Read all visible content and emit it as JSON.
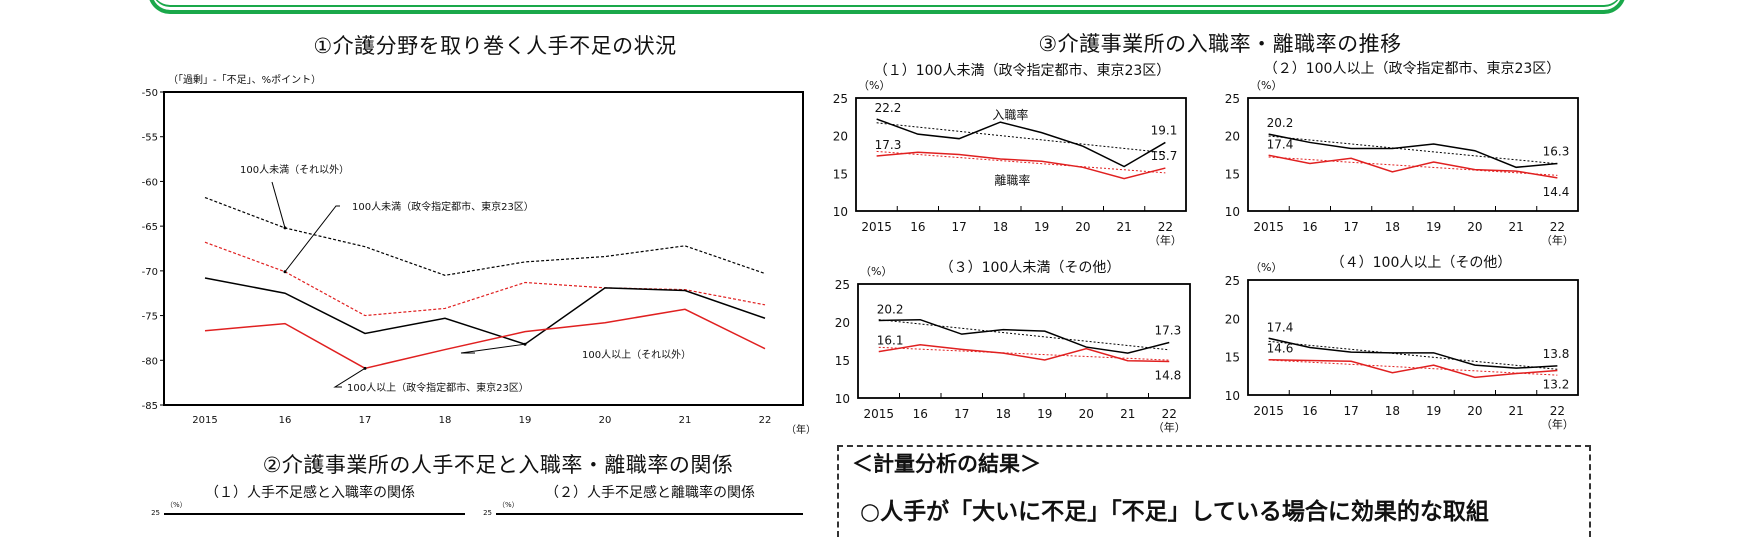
{
  "frame_color": "#1aa84a",
  "section1": {
    "title": "①介護分野を取り巻く人手不足の状況"
  },
  "section2": {
    "title": "②介護事業所の人手不足と入職率・離職率の関係",
    "subcharts": [
      {
        "title": "（１）人手不足感と入職率の関係",
        "unit": "（%）",
        "ytop": "25"
      },
      {
        "title": "（２）人手不足感と離職率の関係",
        "unit": "（%）",
        "ytop": "25"
      }
    ]
  },
  "section3": {
    "title": "③介護事業所の入職率・離職率の推移"
  },
  "results": {
    "heading": "＜計量分析の結果＞",
    "line1": "○人手が「大いに不足」「不足」している場合に効果的な取組"
  },
  "chart_data": [
    {
      "type": "line",
      "title": "",
      "ylabel": "（「過剰」-「不足」、%ポイント）",
      "xlabel": "（年）",
      "categories": [
        "2015",
        "16",
        "17",
        "18",
        "19",
        "20",
        "21",
        "22"
      ],
      "ylim": [
        -85,
        -50
      ],
      "yticks": [
        "-50",
        "-55",
        "-60",
        "-65",
        "-70",
        "-75",
        "-80",
        "-85"
      ],
      "grid": false,
      "series": [
        {
          "name": "100人未満（それ以外）",
          "color": "#000000",
          "dash": true,
          "values": [
            -61.8,
            -65.2,
            -67.3,
            -70.5,
            -69.0,
            -68.4,
            -67.2,
            -70.3
          ]
        },
        {
          "name": "100人未満（政令指定都市、東京23区）",
          "color": "#e02020",
          "dash": true,
          "values": [
            -66.8,
            -70.1,
            -75.0,
            -74.2,
            -71.3,
            -71.9,
            -72.1,
            -73.8
          ]
        },
        {
          "name": "100人以上（それ以外）",
          "color": "#000000",
          "dash": false,
          "values": [
            -70.8,
            -72.5,
            -77.0,
            -75.3,
            -78.2,
            -71.9,
            -72.2,
            -75.3
          ]
        },
        {
          "name": "100人以上（政令指定都市、東京23区）",
          "color": "#e02020",
          "dash": false,
          "values": [
            -76.7,
            -75.9,
            -80.9,
            -78.8,
            -76.8,
            -75.8,
            -74.3,
            -78.7
          ]
        }
      ]
    },
    {
      "type": "line",
      "title": "（１）100人未満（政令指定都市、東京23区）",
      "ylabel": "（%）",
      "xlabel": "（年）",
      "categories": [
        "2015",
        "16",
        "17",
        "18",
        "19",
        "20",
        "21",
        "22"
      ],
      "ylim": [
        10,
        25
      ],
      "yticks": [
        "25",
        "20",
        "15",
        "10"
      ],
      "trendlines": true,
      "show_series_names": true,
      "series": [
        {
          "name": "入職率",
          "color": "#000000",
          "values": [
            22.2,
            20.2,
            19.6,
            21.8,
            20.4,
            18.6,
            15.9,
            19.1
          ],
          "labels": [
            "22.2",
            "19.1"
          ]
        },
        {
          "name": "離職率",
          "color": "#e02020",
          "values": [
            17.3,
            17.8,
            17.5,
            16.9,
            16.6,
            15.8,
            14.3,
            15.7
          ],
          "labels": [
            "17.3",
            "15.7"
          ]
        }
      ]
    },
    {
      "type": "line",
      "title": "（２）100人以上（政令指定都市、東京23区）",
      "ylabel": "（%）",
      "xlabel": "（年）",
      "categories": [
        "2015",
        "16",
        "17",
        "18",
        "19",
        "20",
        "21",
        "22"
      ],
      "ylim": [
        10,
        25
      ],
      "yticks": [
        "25",
        "20",
        "15",
        "10"
      ],
      "trendlines": true,
      "series": [
        {
          "name": "入職率",
          "color": "#000000",
          "values": [
            20.2,
            19.1,
            18.3,
            18.3,
            18.9,
            18.0,
            15.8,
            16.3
          ],
          "labels": [
            "20.2",
            "16.3"
          ]
        },
        {
          "name": "離職率",
          "color": "#e02020",
          "values": [
            17.4,
            16.3,
            17.0,
            15.2,
            16.5,
            15.5,
            15.3,
            14.4
          ],
          "labels": [
            "17.4",
            "14.4"
          ]
        }
      ]
    },
    {
      "type": "line",
      "title": "（３）100人未満（その他）",
      "ylabel": "（%）",
      "xlabel": "（年）",
      "categories": [
        "2015",
        "16",
        "17",
        "18",
        "19",
        "20",
        "21",
        "22"
      ],
      "ylim": [
        10,
        25
      ],
      "yticks": [
        "25",
        "20",
        "15",
        "10"
      ],
      "trendlines": true,
      "series": [
        {
          "name": "入職率",
          "color": "#000000",
          "values": [
            20.2,
            20.3,
            18.4,
            19.0,
            18.8,
            16.7,
            15.9,
            17.3
          ],
          "labels": [
            "20.2",
            "17.3"
          ]
        },
        {
          "name": "離職率",
          "color": "#e02020",
          "values": [
            16.1,
            17.0,
            16.4,
            15.9,
            15.0,
            16.5,
            14.9,
            14.8
          ],
          "labels": [
            "16.1",
            "14.8"
          ]
        }
      ]
    },
    {
      "type": "line",
      "title": "（４）100人以上（その他）",
      "ylabel": "（%）",
      "xlabel": "（年）",
      "categories": [
        "2015",
        "16",
        "17",
        "18",
        "19",
        "20",
        "21",
        "22"
      ],
      "ylim": [
        10,
        25
      ],
      "yticks": [
        "25",
        "20",
        "15",
        "10"
      ],
      "trendlines": true,
      "series": [
        {
          "name": "入職率",
          "color": "#000000",
          "values": [
            17.4,
            16.2,
            15.6,
            15.5,
            15.5,
            13.9,
            13.5,
            13.8
          ],
          "labels": [
            "17.4",
            "13.8"
          ]
        },
        {
          "name": "離職率",
          "color": "#e02020",
          "values": [
            14.6,
            14.5,
            14.4,
            12.9,
            13.9,
            12.3,
            12.8,
            13.2
          ],
          "labels": [
            "14.6",
            "13.2"
          ]
        }
      ]
    }
  ]
}
